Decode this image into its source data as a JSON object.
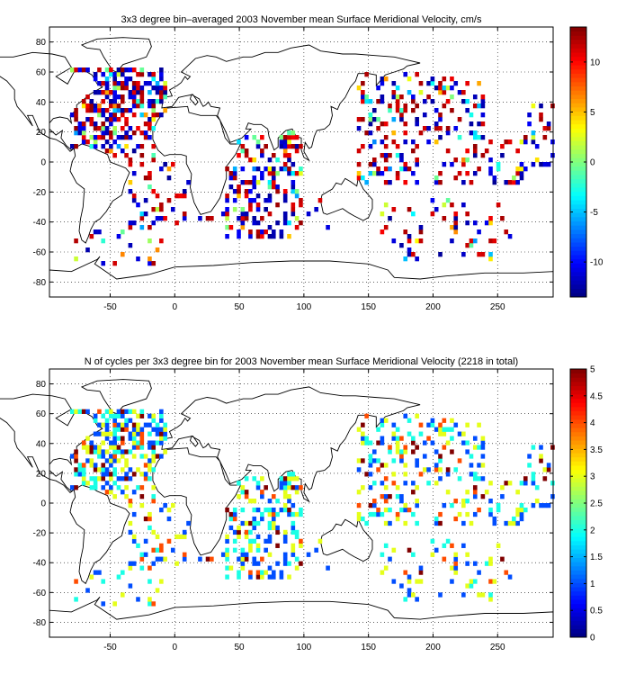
{
  "chart_data": [
    {
      "type": "heatmap",
      "title": "3x3 degree bin–averaged 2003 November mean Surface Meridional Velocity, cm/s",
      "xlim": [
        -97,
        293
      ],
      "ylim": [
        -90,
        90
      ],
      "xticks": [
        -50,
        0,
        50,
        100,
        150,
        200,
        250
      ],
      "yticks": [
        -80,
        -60,
        -40,
        -20,
        0,
        20,
        40,
        60,
        80
      ],
      "colorbar": {
        "range": [
          -13.5,
          13.5
        ],
        "ticks": [
          -10,
          -5,
          0,
          5,
          10
        ]
      },
      "grid": true,
      "grid_style": "dotted",
      "colormap": "jet",
      "bin_size_deg": 3,
      "overlay": "coastlines"
    },
    {
      "type": "heatmap",
      "title": "N of cycles per 3x3 degree bin for 2003 November mean Surface Meridional Velocity (2218 in total)",
      "xlim": [
        -97,
        293
      ],
      "ylim": [
        -90,
        90
      ],
      "xticks": [
        -50,
        0,
        50,
        100,
        150,
        200,
        250
      ],
      "yticks": [
        -80,
        -60,
        -40,
        -20,
        0,
        20,
        40,
        60,
        80
      ],
      "colorbar": {
        "range": [
          0,
          5
        ],
        "ticks": [
          0,
          0.5,
          1,
          1.5,
          2,
          2.5,
          3,
          3.5,
          4,
          4.5,
          5
        ]
      },
      "grid": true,
      "grid_style": "dotted",
      "colormap": "jet",
      "bin_size_deg": 3,
      "overlay": "coastlines"
    }
  ]
}
